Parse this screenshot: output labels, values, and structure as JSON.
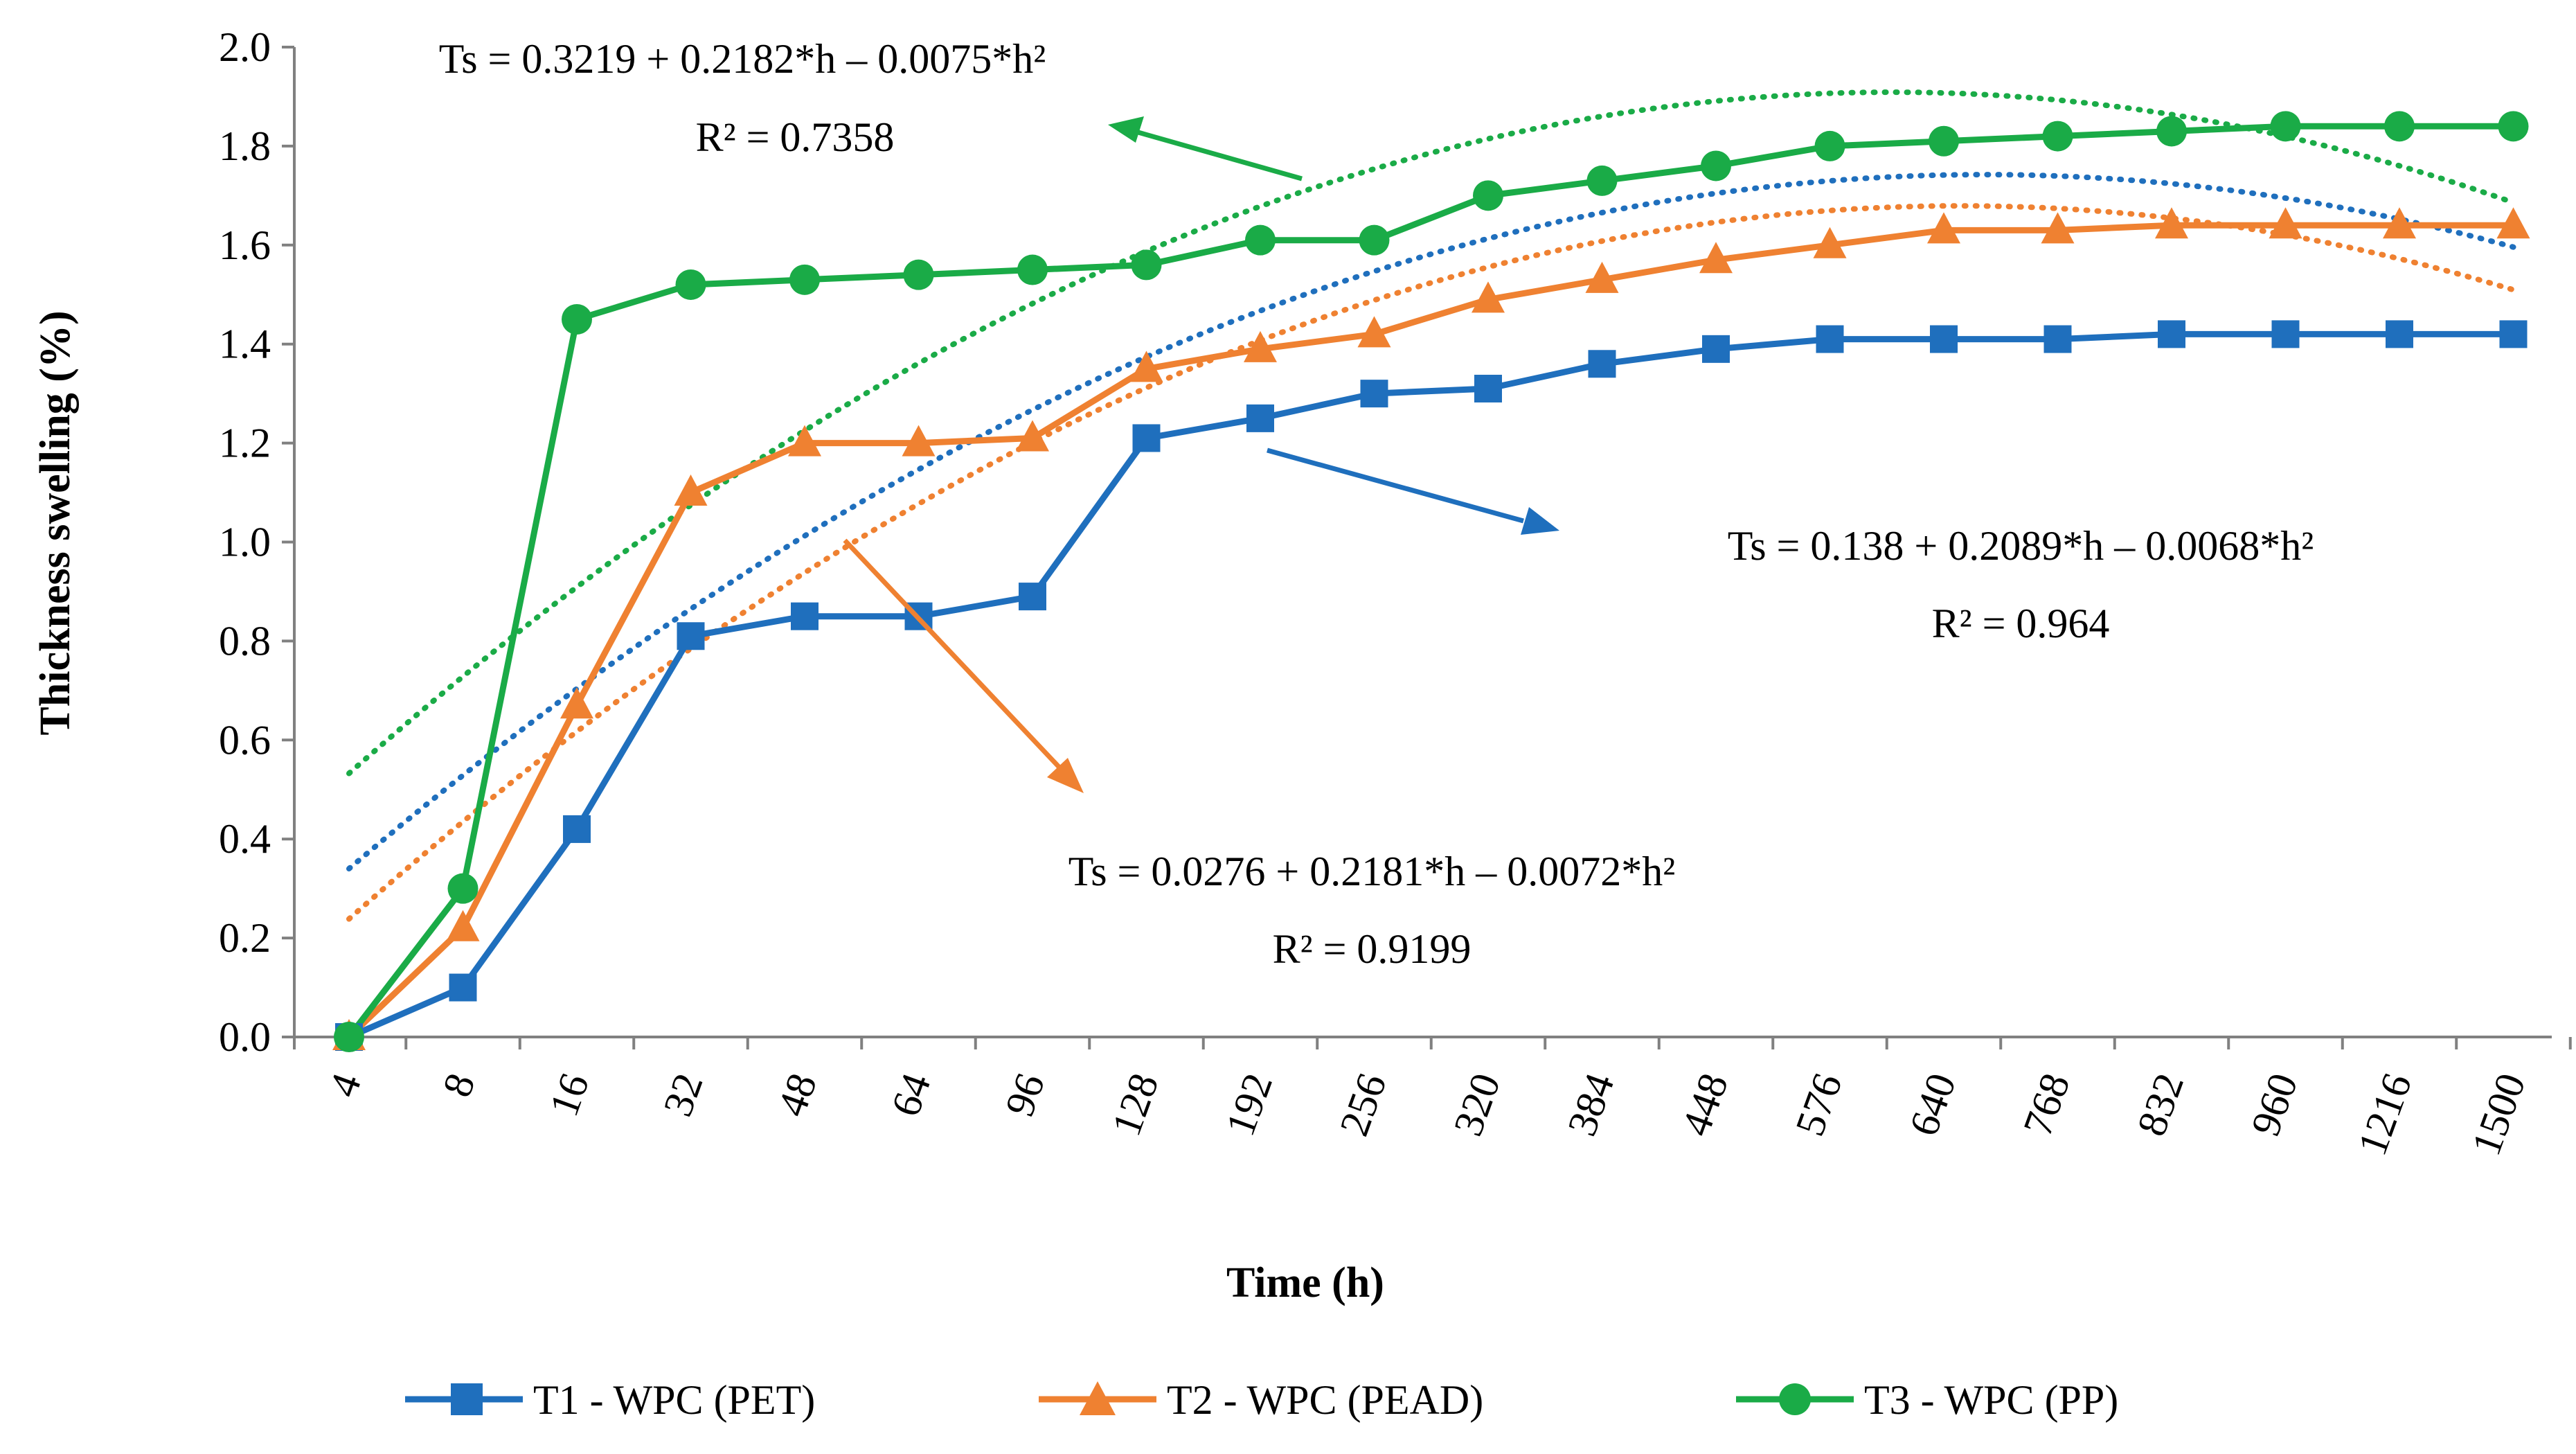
{
  "chart_data": {
    "type": "line",
    "title": "",
    "xlabel": "Time (h)",
    "ylabel": "Thickness swelling (%)",
    "categories": [
      "4",
      "8",
      "16",
      "32",
      "48",
      "64",
      "96",
      "128",
      "192",
      "256",
      "320",
      "384",
      "448",
      "576",
      "640",
      "768",
      "832",
      "960",
      "1216",
      "1500"
    ],
    "ylim": [
      0,
      2.0
    ],
    "yticks": [
      "0.0",
      "0.2",
      "0.4",
      "0.6",
      "0.8",
      "1.0",
      "1.2",
      "1.4",
      "1.6",
      "1.8",
      "2.0"
    ],
    "legend_position": "bottom",
    "series": [
      {
        "name": "T1 - WPC (PET)",
        "color": "#1f6fbd",
        "marker": "square",
        "values": [
          0.0,
          0.1,
          0.42,
          0.81,
          0.85,
          0.85,
          0.89,
          1.21,
          1.25,
          1.3,
          1.31,
          1.36,
          1.39,
          1.41,
          1.41,
          1.41,
          1.42,
          1.42,
          1.42,
          1.42
        ],
        "trend": {
          "a": 0.138,
          "b": 0.2089,
          "c": -0.0068
        },
        "equation": "Ts = 0.138 + 0.2089*h – 0.0068*h²",
        "r2": "R² = 0.964"
      },
      {
        "name": "T2 - WPC (PEAD)",
        "color": "#ef8131",
        "marker": "triangle",
        "values": [
          0.0,
          0.22,
          0.67,
          1.1,
          1.2,
          1.2,
          1.21,
          1.35,
          1.39,
          1.42,
          1.49,
          1.53,
          1.57,
          1.6,
          1.63,
          1.63,
          1.64,
          1.64,
          1.64,
          1.64
        ],
        "trend": {
          "a": 0.0276,
          "b": 0.2181,
          "c": -0.0072
        },
        "equation": "Ts = 0.0276 + 0.2181*h – 0.0072*h²",
        "r2": "R² = 0.9199"
      },
      {
        "name": "T3 - WPC (PP)",
        "color": "#1aab47",
        "marker": "circle",
        "values": [
          0.0,
          0.3,
          1.45,
          1.52,
          1.53,
          1.54,
          1.55,
          1.56,
          1.61,
          1.61,
          1.7,
          1.73,
          1.76,
          1.8,
          1.81,
          1.82,
          1.83,
          1.84,
          1.84,
          1.84
        ],
        "trend": {
          "a": 0.3219,
          "b": 0.2182,
          "c": -0.0075
        },
        "equation": "Ts = 0.3219 + 0.2182*h – 0.0075*h²",
        "r2": "R² = 0.7358"
      }
    ]
  }
}
